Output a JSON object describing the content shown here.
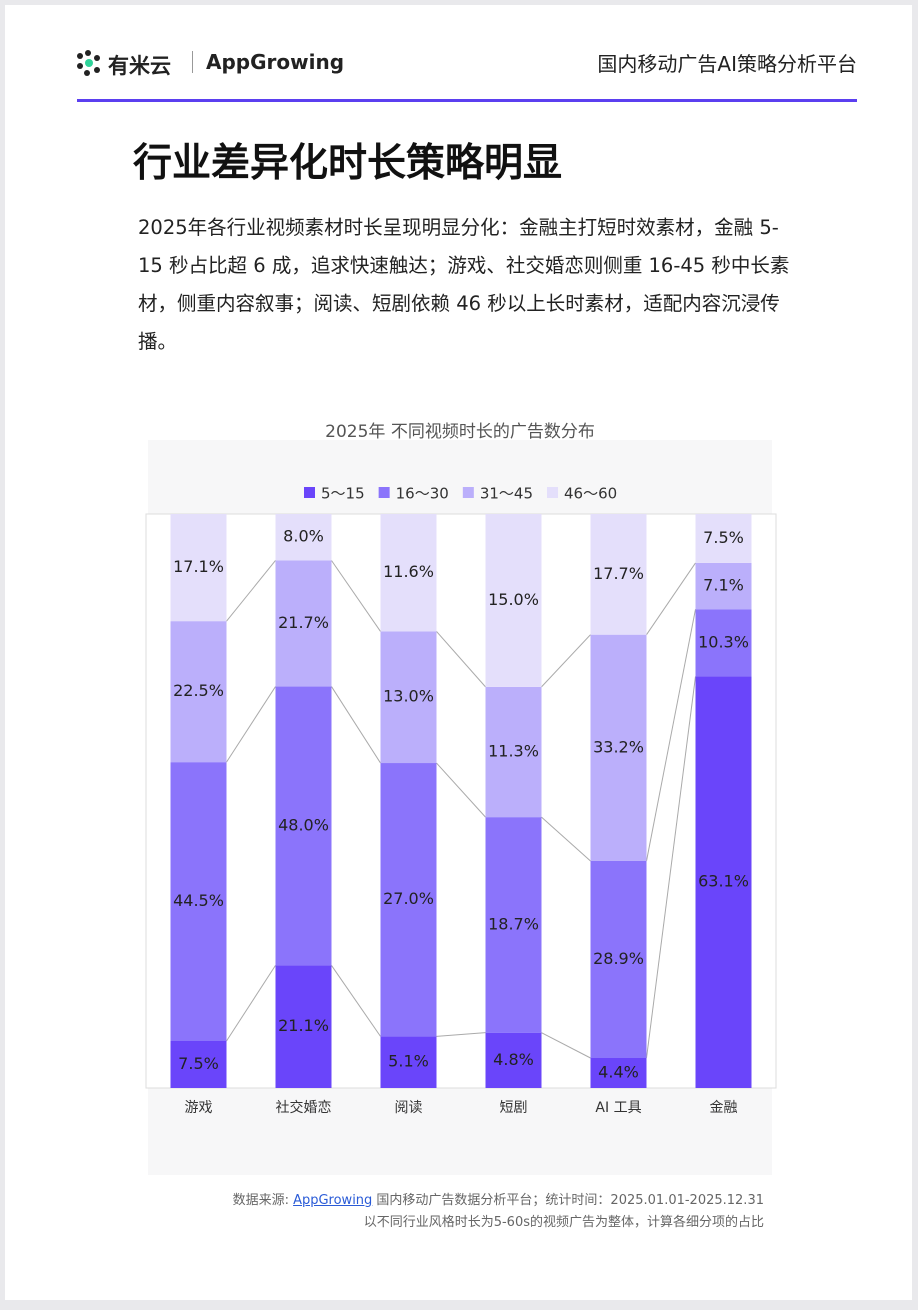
{
  "header": {
    "logo_left": "有米云",
    "logo_right": "AppGrowing",
    "platform": "国内移动广告AI策略分析平台"
  },
  "title": "行业差异化时长策略明显",
  "body": "2025年各行业视频素材时长呈现明显分化：金融主打短时效素材，金融 5-15 秒占比超 6 成，追求快速触达；游戏、社交婚恋则侧重 16-45 秒中长素材，侧重内容叙事；阅读、短剧依赖 46 秒以上长时素材，适配内容沉浸传播。",
  "chart_data": {
    "type": "bar",
    "stacked": "percent",
    "title": "2025年 不同视频时长的广告数分布",
    "categories": [
      "游戏",
      "社交婚恋",
      "阅读",
      "短剧",
      "AI 工具",
      "金融"
    ],
    "series": [
      {
        "name": "5～15",
        "color": "#6a45fa",
        "values": [
          7.5,
          21.1,
          5.1,
          4.8,
          4.4,
          63.1
        ],
        "value_labels": [
          "7.5%",
          "21.1%",
          "5.1%",
          "4.8%",
          "4.4%",
          "63.1%"
        ]
      },
      {
        "name": "16～30",
        "color": "#8b74fb",
        "values": [
          44.5,
          48.0,
          27.0,
          18.7,
          28.9,
          10.3
        ],
        "value_labels": [
          "44.5%",
          "48.0%",
          "27.0%",
          "18.7%",
          "28.9%",
          "10.3%"
        ]
      },
      {
        "name": "31～45",
        "color": "#bbaffb",
        "values": [
          22.5,
          21.7,
          13.0,
          11.3,
          33.2,
          7.1
        ],
        "value_labels": [
          "22.5%",
          "21.7%",
          "13.0%",
          "11.3%",
          "33.2%",
          "7.1%"
        ]
      },
      {
        "name": "46～60",
        "color": "#e4dffb",
        "values": [
          17.1,
          8.0,
          11.6,
          15.0,
          17.7,
          7.5
        ],
        "value_labels": [
          "17.1%",
          "8.0%",
          "11.6%",
          "15.0%",
          "17.7%",
          "7.5%"
        ]
      }
    ]
  },
  "footer": {
    "source_prefix": "数据来源: ",
    "source_link": "AppGrowing",
    "source_suffix": " 国内移动广告数据分析平台；统计时间：2025.01.01-2025.12.31",
    "note": "以不同行业风格时长为5-60s的视频广告为整体，计算各细分项的占比"
  }
}
